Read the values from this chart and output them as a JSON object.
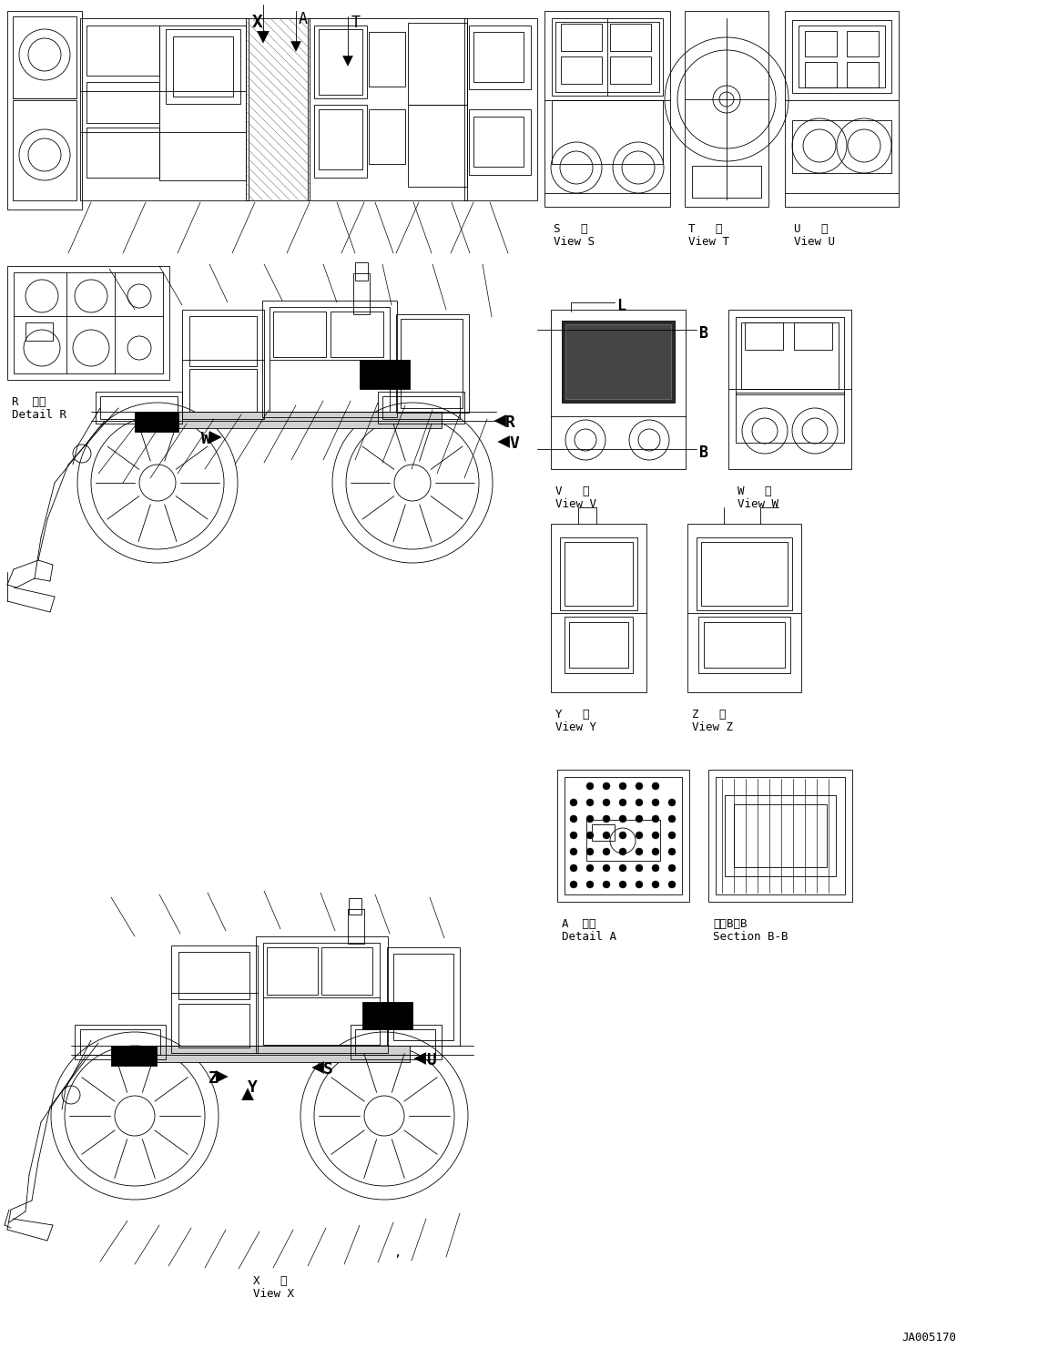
{
  "figsize": [
    11.51,
    14.81
  ],
  "dpi": 100,
  "bg_color": "#ffffff",
  "lc": "#000000",
  "tc": "#000000",
  "lw": 0.6,
  "labels": {
    "X": "X",
    "A": "A",
    "T_lbl": "T",
    "R_lbl": "R",
    "V_lbl": "V",
    "W_lbl": "W",
    "S_lbl": "S",
    "U_lbl": "U",
    "Z_lbl": "Z",
    "Y_lbl": "Y",
    "B_lbl": "B",
    "L_lbl": "L",
    "view_s_jp": "S   視",
    "view_s_en": "View S",
    "view_t_jp": "T   視",
    "view_t_en": "View T",
    "view_u_jp": "U   視",
    "view_u_en": "View U",
    "view_v_jp": "V   視",
    "view_v_en": "View V",
    "view_w_jp": "W   視",
    "view_w_en": "View W",
    "view_y_jp": "Y   視",
    "view_y_en": "View Y",
    "view_z_jp": "Z   視",
    "view_z_en": "View Z",
    "view_x_jp": "X   視",
    "view_x_en": "View X",
    "detail_r_jp": "R  詳細",
    "detail_r_en": "Detail R",
    "detail_a_jp": "A  詳細",
    "detail_a_en": "Detail A",
    "section_bb_jp": "断面B－B",
    "section_bb_en": "Section B-B",
    "part_num": "JA005170",
    "comma": ","
  }
}
